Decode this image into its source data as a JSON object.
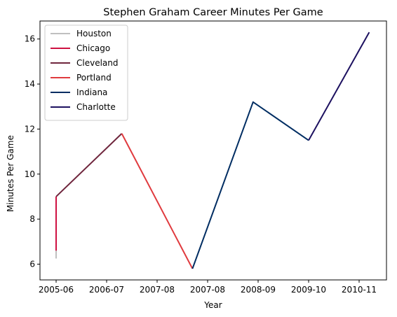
{
  "chart_data": {
    "type": "line",
    "title": "Stephen Graham  Career Minutes Per Game",
    "xlabel": "Year",
    "ylabel": "Minutes Per Game",
    "categories": [
      "2005-06",
      "2006-07",
      "2007-08",
      "2007-08",
      "2008-09",
      "2009-10",
      "2010-11"
    ],
    "ylim": [
      5.3,
      16.8
    ],
    "yticks": [
      6,
      8,
      10,
      12,
      14,
      16
    ],
    "grid": false,
    "legend_position": "top-left",
    "series": [
      {
        "name": "Houston",
        "color": "#bfbfbf",
        "x": [
          0,
          0
        ],
        "y": [
          6.25,
          6.7
        ]
      },
      {
        "name": "Chicago",
        "color": "#ce1141",
        "x": [
          0,
          0
        ],
        "y": [
          6.6,
          9.0
        ]
      },
      {
        "name": "Cleveland",
        "color": "#6f263d",
        "x": [
          0,
          1.3
        ],
        "y": [
          9.0,
          11.8
        ]
      },
      {
        "name": "Portland",
        "color": "#e03a3e",
        "x": [
          1.3,
          2.7
        ],
        "y": [
          11.8,
          5.8
        ]
      },
      {
        "name": "Indiana",
        "color": "#002d62",
        "x": [
          2.7,
          3.9,
          5.0
        ],
        "y": [
          5.8,
          13.2,
          11.5
        ]
      },
      {
        "name": "Charlotte",
        "color": "#1d1160",
        "x": [
          5.0,
          6.2
        ],
        "y": [
          11.5,
          16.3
        ]
      }
    ]
  }
}
